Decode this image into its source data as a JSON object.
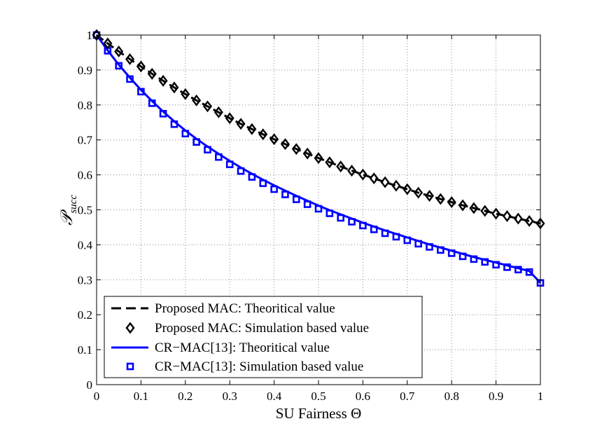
{
  "chart_data": {
    "type": "line",
    "xlabel": "SU Fairness Θ",
    "ylabel_symbol": "𝒫",
    "ylabel_subscript": "succ",
    "xlim": [
      0,
      1
    ],
    "ylim": [
      0,
      1
    ],
    "x_ticks": [
      0,
      0.1,
      0.2,
      0.3,
      0.4,
      0.5,
      0.6,
      0.7,
      0.8,
      0.9,
      1
    ],
    "y_ticks": [
      0,
      0.1,
      0.2,
      0.3,
      0.4,
      0.5,
      0.6,
      0.7,
      0.8,
      0.9,
      1
    ],
    "x_tick_labels": [
      "0",
      "0.1",
      "0.2",
      "0.3",
      "0.4",
      "0.5",
      "0.6",
      "0.7",
      "0.8",
      "0.9",
      "1"
    ],
    "y_tick_labels": [
      "0",
      "0.1",
      "0.2",
      "0.3",
      "0.4",
      "0.5",
      "0.6",
      "0.7",
      "0.8",
      "0.9",
      "1"
    ],
    "grid": true,
    "legend_position": "bottom-left",
    "x": [
      0,
      0.025,
      0.05,
      0.075,
      0.1,
      0.125,
      0.15,
      0.175,
      0.2,
      0.225,
      0.25,
      0.275,
      0.3,
      0.325,
      0.35,
      0.375,
      0.4,
      0.425,
      0.45,
      0.475,
      0.5,
      0.525,
      0.55,
      0.575,
      0.6,
      0.625,
      0.65,
      0.675,
      0.7,
      0.725,
      0.75,
      0.775,
      0.8,
      0.825,
      0.85,
      0.875,
      0.9,
      0.925,
      0.95,
      0.975,
      1
    ],
    "series": [
      {
        "name": "Proposed MAC: Theoritical value",
        "kind": "line",
        "style": "dashed",
        "color": "#000000",
        "values": [
          1.0,
          0.976,
          0.953,
          0.931,
          0.91,
          0.889,
          0.869,
          0.85,
          0.831,
          0.813,
          0.796,
          0.779,
          0.762,
          0.746,
          0.731,
          0.716,
          0.702,
          0.688,
          0.674,
          0.661,
          0.648,
          0.636,
          0.624,
          0.612,
          0.601,
          0.59,
          0.579,
          0.569,
          0.559,
          0.549,
          0.54,
          0.531,
          0.522,
          0.513,
          0.505,
          0.497,
          0.489,
          0.482,
          0.475,
          0.468,
          0.461
        ]
      },
      {
        "name": "Proposed MAC: Simulation based value",
        "kind": "markers",
        "marker": "diamond",
        "color": "#000000",
        "values": [
          1.0,
          0.976,
          0.953,
          0.931,
          0.91,
          0.889,
          0.869,
          0.85,
          0.831,
          0.813,
          0.796,
          0.779,
          0.762,
          0.746,
          0.731,
          0.716,
          0.702,
          0.688,
          0.674,
          0.661,
          0.648,
          0.636,
          0.624,
          0.612,
          0.601,
          0.59,
          0.579,
          0.569,
          0.559,
          0.549,
          0.54,
          0.531,
          0.522,
          0.513,
          0.505,
          0.497,
          0.489,
          0.482,
          0.475,
          0.468,
          0.461
        ]
      },
      {
        "name": "CR−MAC[13]: Theoritical value",
        "kind": "line",
        "style": "solid",
        "color": "#0000ff",
        "values": [
          1.0,
          0.956,
          0.915,
          0.878,
          0.843,
          0.811,
          0.781,
          0.753,
          0.727,
          0.703,
          0.681,
          0.66,
          0.64,
          0.621,
          0.603,
          0.586,
          0.57,
          0.555,
          0.54,
          0.526,
          0.512,
          0.499,
          0.487,
          0.475,
          0.463,
          0.452,
          0.441,
          0.431,
          0.421,
          0.411,
          0.401,
          0.392,
          0.383,
          0.374,
          0.365,
          0.357,
          0.349,
          0.341,
          0.333,
          0.325,
          0.291
        ]
      },
      {
        "name": "CR−MAC[13]: Simulation based value",
        "kind": "markers",
        "marker": "square",
        "color": "#0000ff",
        "values": [
          1.0,
          0.955,
          0.912,
          0.874,
          0.838,
          0.805,
          0.775,
          0.745,
          0.718,
          0.694,
          0.672,
          0.651,
          0.63,
          0.611,
          0.594,
          0.576,
          0.559,
          0.544,
          0.53,
          0.516,
          0.503,
          0.49,
          0.477,
          0.466,
          0.455,
          0.444,
          0.433,
          0.423,
          0.413,
          0.403,
          0.394,
          0.385,
          0.376,
          0.367,
          0.359,
          0.351,
          0.343,
          0.336,
          0.329,
          0.322,
          0.291
        ]
      }
    ]
  }
}
